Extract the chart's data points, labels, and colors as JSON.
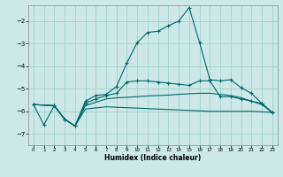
{
  "xlabel": "Humidex (Indice chaleur)",
  "bg_color": "#cce8e8",
  "line_color": "#006666",
  "grid_color": "#99cccc",
  "xlim": [
    -0.5,
    23.5
  ],
  "ylim": [
    -7.5,
    -1.3
  ],
  "yticks": [
    -7,
    -6,
    -5,
    -4,
    -3,
    -2
  ],
  "xticks": [
    0,
    1,
    2,
    3,
    4,
    5,
    6,
    7,
    8,
    9,
    10,
    11,
    12,
    13,
    14,
    15,
    16,
    17,
    18,
    19,
    20,
    21,
    22,
    23
  ],
  "line1_x": [
    0,
    1,
    2,
    3,
    4,
    5,
    6,
    7,
    8,
    9,
    10,
    11,
    12,
    13,
    14,
    15,
    16,
    17,
    18,
    19,
    20,
    21,
    22,
    23
  ],
  "line1_y": [
    -5.7,
    -6.6,
    -5.75,
    -6.35,
    -6.65,
    -5.55,
    -5.3,
    -5.25,
    -4.9,
    -3.85,
    -2.95,
    -2.5,
    -2.45,
    -2.2,
    -2.0,
    -1.4,
    -2.95,
    -4.6,
    -4.65,
    -4.6,
    -4.95,
    -5.2,
    -5.65,
    -6.05
  ],
  "line2_x": [
    0,
    2,
    3,
    4,
    5,
    6,
    7,
    8,
    9,
    10,
    11,
    12,
    13,
    14,
    15,
    16,
    17,
    18,
    19,
    20,
    21,
    22,
    23
  ],
  "line2_y": [
    -5.7,
    -5.75,
    -6.35,
    -6.65,
    -5.65,
    -5.45,
    -5.3,
    -5.2,
    -4.7,
    -4.65,
    -4.65,
    -4.7,
    -4.75,
    -4.8,
    -4.85,
    -4.65,
    -4.65,
    -5.35,
    -5.35,
    -5.45,
    -5.55,
    -5.65,
    -6.05
  ],
  "line3_x": [
    0,
    2,
    3,
    4,
    5,
    6,
    7,
    8,
    9,
    10,
    11,
    12,
    13,
    14,
    15,
    16,
    17,
    18,
    19,
    20,
    21,
    22,
    23
  ],
  "line3_y": [
    -5.7,
    -5.75,
    -6.35,
    -6.65,
    -5.75,
    -5.6,
    -5.45,
    -5.4,
    -5.38,
    -5.35,
    -5.32,
    -5.3,
    -5.28,
    -5.25,
    -5.22,
    -5.2,
    -5.2,
    -5.25,
    -5.3,
    -5.4,
    -5.55,
    -5.7,
    -6.05
  ],
  "line4_x": [
    0,
    2,
    3,
    4,
    5,
    6,
    7,
    8,
    9,
    10,
    11,
    12,
    13,
    14,
    15,
    16,
    17,
    18,
    19,
    20,
    21,
    22,
    23
  ],
  "line4_y": [
    -5.7,
    -5.75,
    -6.35,
    -6.65,
    -5.9,
    -5.85,
    -5.8,
    -5.82,
    -5.84,
    -5.86,
    -5.88,
    -5.9,
    -5.92,
    -5.94,
    -5.96,
    -5.98,
    -6.0,
    -6.0,
    -6.0,
    -6.0,
    -6.0,
    -6.02,
    -6.05
  ]
}
